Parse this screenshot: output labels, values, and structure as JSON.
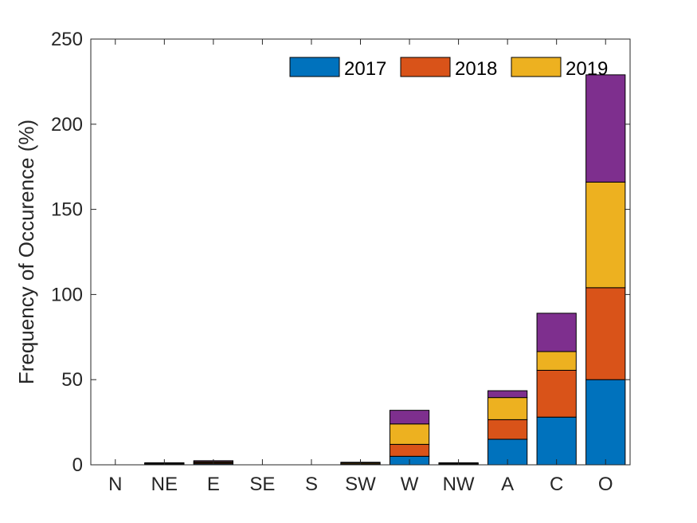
{
  "chart_data": {
    "type": "bar",
    "stacked": true,
    "title": "",
    "xlabel": "",
    "ylabel": "Frequency of Occurence (%)",
    "ylim": [
      0,
      250
    ],
    "yticks": [
      "0",
      "50",
      "100",
      "150",
      "200",
      "250"
    ],
    "categories": [
      "N",
      "NE",
      "E",
      "SE",
      "S",
      "SW",
      "W",
      "NW",
      "A",
      "C",
      "O"
    ],
    "series": [
      {
        "name": "2017",
        "color": "#0072BD",
        "values": [
          0,
          0.3,
          0.6,
          0,
          0,
          0.3,
          5,
          0.3,
          15,
          28,
          50
        ]
      },
      {
        "name": "2018",
        "color": "#D95319",
        "values": [
          0,
          0.3,
          0.6,
          0,
          0,
          0.3,
          7,
          0.3,
          11.5,
          27.5,
          54
        ]
      },
      {
        "name": "2019",
        "color": "#EDB120",
        "values": [
          0,
          0.3,
          0.6,
          0,
          0,
          0.6,
          12,
          0.3,
          13,
          11,
          62
        ]
      },
      {
        "name": "",
        "color": "#7E2F8E",
        "values": [
          0,
          0.3,
          0.6,
          0,
          0,
          0.3,
          8,
          0.3,
          4,
          22.5,
          63
        ]
      }
    ],
    "legend": {
      "placement": "top-right",
      "orientation": "horizontal"
    },
    "grid": false
  }
}
